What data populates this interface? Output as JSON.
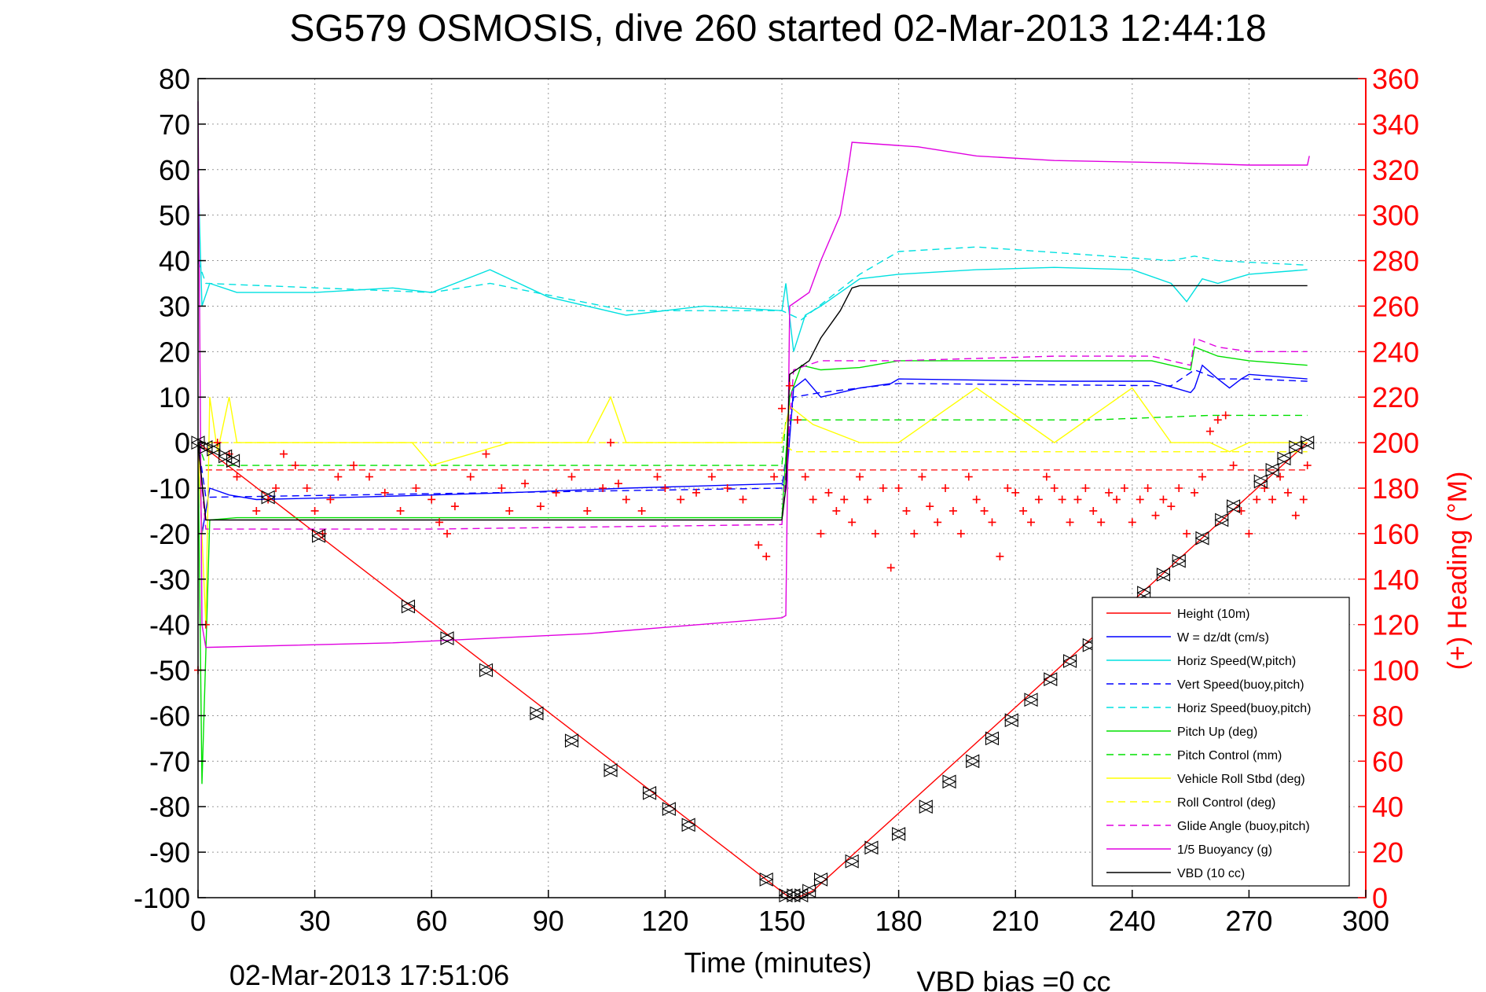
{
  "chart_data": {
    "type": "line",
    "title": "SG579 OSMOSIS, dive 260 started 02-Mar-2013 12:44:18",
    "xlabel": "Time (minutes)",
    "ylabel": "",
    "y2label": "(+) Heading (°M)",
    "footer_left": "02-Mar-2013 17:51:06",
    "footer_right": "VBD bias =0 cc",
    "xlim": [
      0,
      300
    ],
    "ylim": [
      -100,
      80
    ],
    "y2lim": [
      0,
      360
    ],
    "grid": true,
    "legend_position": "bottom-right",
    "x_ticks": [
      "0",
      "30",
      "60",
      "90",
      "120",
      "150",
      "180",
      "210",
      "240",
      "270",
      "300"
    ],
    "y_ticks": [
      "80",
      "70",
      "60",
      "50",
      "40",
      "30",
      "20",
      "10",
      "0",
      "-10",
      "-20",
      "-30",
      "-40",
      "-50",
      "-60",
      "-70",
      "-80",
      "-90",
      "-100"
    ],
    "y2_ticks": [
      "360",
      "340",
      "320",
      "300",
      "280",
      "260",
      "240",
      "220",
      "200",
      "180",
      "160",
      "140",
      "120",
      "100",
      "80",
      "60",
      "40",
      "20",
      "0"
    ],
    "legend": [
      "Height (10m)",
      "W = dz/dt (cm/s)",
      "Horiz Speed(W,pitch)",
      "Vert Speed(buoy,pitch)",
      "Horiz Speed(buoy,pitch)",
      "Pitch Up (deg)",
      "Pitch Control (mm)",
      "Vehicle Roll Stbd (deg)",
      "Roll Control (deg)",
      "Glide Angle (buoy,pitch)",
      "1/5 Buoyancy (g)",
      "VBD (10 cc)"
    ],
    "series": [
      {
        "name": "Height (10m)",
        "color": "#ff0000",
        "dash": "solid",
        "x": [
          0,
          152,
          154,
          158,
          285
        ],
        "y": [
          0,
          -100,
          -100,
          -98.5,
          0
        ]
      },
      {
        "name": "W = dz/dt (cm/s)",
        "color": "#0000ff",
        "dash": "solid",
        "x": [
          0,
          1,
          3,
          8,
          15,
          40,
          80,
          110,
          150,
          151,
          153,
          156,
          160,
          170,
          178,
          180,
          220,
          245,
          255,
          256,
          258,
          262,
          265,
          268,
          270,
          285
        ],
        "y": [
          0,
          -20,
          -10,
          -11.5,
          -12.5,
          -12,
          -11,
          -10,
          -9,
          -10,
          12,
          14,
          10,
          12,
          13,
          14,
          13.5,
          13.5,
          11,
          12,
          17,
          14,
          12,
          14,
          15,
          14
        ]
      },
      {
        "name": "Horiz Speed(W,pitch)",
        "color": "#00e0e0",
        "dash": "solid",
        "x": [
          0,
          1,
          3,
          10,
          30,
          50,
          60,
          75,
          90,
          110,
          130,
          150,
          151,
          153,
          156,
          160,
          165,
          170,
          180,
          200,
          220,
          240,
          250,
          254,
          258,
          262,
          270,
          285
        ],
        "y": [
          60,
          30,
          35,
          33,
          33,
          34,
          33,
          38,
          32,
          28,
          30,
          29,
          35,
          20,
          28,
          30,
          33,
          36,
          37,
          38,
          38.5,
          38,
          35,
          31,
          36,
          35,
          37,
          38
        ]
      },
      {
        "name": "Vert Speed(buoy,pitch)",
        "color": "#0000ff",
        "dash": "dashed",
        "x": [
          0,
          2,
          150,
          153,
          160,
          180,
          250,
          256,
          262,
          270,
          285
        ],
        "y": [
          0,
          -12,
          -10,
          10,
          11,
          13,
          12.5,
          16,
          14,
          14,
          13.5
        ]
      },
      {
        "name": "Horiz Speed(buoy,pitch)",
        "color": "#00e0e0",
        "dash": "dashed",
        "x": [
          0,
          2,
          60,
          75,
          110,
          150,
          155,
          170,
          180,
          200,
          250,
          256,
          262,
          285
        ],
        "y": [
          40,
          35,
          33,
          35,
          29,
          29,
          27,
          37,
          42,
          43,
          40,
          41,
          40,
          39
        ]
      },
      {
        "name": "Pitch Up (deg)",
        "color": "#00e000",
        "dash": "solid",
        "x": [
          0,
          1,
          3,
          10,
          60,
          110,
          150,
          152,
          155,
          160,
          170,
          180,
          220,
          245,
          255,
          256,
          262,
          270,
          285
        ],
        "y": [
          0,
          -75,
          -17,
          -16.5,
          -16.5,
          -16.5,
          -16.5,
          10,
          17,
          16,
          16.5,
          18,
          18,
          18,
          16,
          21,
          19,
          18,
          17
        ]
      },
      {
        "name": "Pitch Control (mm)",
        "color": "#00e000",
        "dash": "dashed",
        "x": [
          0,
          2,
          50,
          100,
          150,
          151,
          155,
          180,
          230,
          260,
          285
        ],
        "y": [
          0,
          -5,
          -5,
          -5,
          -5,
          5,
          5,
          5,
          5,
          6,
          6
        ]
      },
      {
        "name": "Vehicle Roll Stbd (deg)",
        "color": "#ffff00",
        "dash": "solid",
        "x": [
          0,
          2,
          3,
          5,
          8,
          10,
          20,
          40,
          55,
          60,
          80,
          90,
          100,
          106,
          110,
          120,
          130,
          150,
          152,
          158,
          170,
          180,
          200,
          220,
          240,
          250,
          260,
          265,
          270,
          285
        ],
        "y": [
          0,
          -40,
          10,
          -2,
          10,
          0,
          0,
          0,
          0,
          -5,
          0,
          0,
          0,
          10,
          0,
          0,
          0,
          0,
          8,
          4,
          0,
          0,
          12,
          0,
          12,
          0,
          0,
          -2,
          0,
          0
        ]
      },
      {
        "name": "Roll Control (deg)",
        "color": "#ffff00",
        "dash": "dashed",
        "x": [
          0,
          5,
          150,
          153,
          285
        ],
        "y": [
          0,
          0,
          0,
          -2,
          -2
        ]
      },
      {
        "name": "Glide Angle (buoy,pitch)",
        "color": "#e000e0",
        "dash": "dashed",
        "x": [
          0,
          2,
          60,
          150,
          153,
          160,
          180,
          220,
          245,
          255,
          256,
          262,
          270,
          285
        ],
        "y": [
          0,
          -19,
          -19,
          -18,
          16,
          18,
          18,
          19,
          19,
          17,
          23,
          21,
          20,
          20
        ]
      },
      {
        "name": "1/5 Buoyancy (g)",
        "color": "#e000e0",
        "dash": "solid",
        "x": [
          0,
          1,
          2,
          50,
          100,
          150,
          151,
          152,
          157,
          160,
          165,
          167,
          168,
          185,
          200,
          220,
          250,
          270,
          285,
          285.5
        ],
        "y": [
          75,
          -40,
          -45,
          -44,
          -42,
          -38.5,
          -38,
          30,
          33,
          40,
          50,
          60,
          66,
          65,
          63,
          62,
          61.5,
          61,
          61,
          63
        ]
      },
      {
        "name": "VBD (10 cc)",
        "color": "#000000",
        "dash": "solid",
        "x": [
          0,
          2,
          150,
          151,
          152,
          157,
          160,
          165,
          168,
          170,
          285
        ],
        "y": [
          0,
          -17,
          -17,
          -10,
          15,
          18,
          23,
          29,
          34,
          34.5,
          34.5
        ]
      }
    ],
    "heading": {
      "name": "(+) Heading (°M)",
      "color": "#ff0000",
      "marker": "+",
      "reference_line": 188,
      "x": [
        0,
        2,
        5,
        8,
        10,
        15,
        18,
        20,
        22,
        25,
        28,
        30,
        32,
        34,
        36,
        40,
        44,
        48,
        52,
        56,
        60,
        62,
        64,
        66,
        70,
        74,
        78,
        80,
        84,
        88,
        92,
        96,
        100,
        104,
        106,
        108,
        110,
        114,
        118,
        120,
        124,
        128,
        132,
        136,
        140,
        144,
        146,
        148,
        150,
        152,
        154,
        156,
        158,
        160,
        162,
        164,
        166,
        168,
        170,
        172,
        174,
        176,
        178,
        180,
        182,
        184,
        186,
        188,
        190,
        192,
        194,
        196,
        198,
        200,
        202,
        204,
        206,
        208,
        210,
        212,
        214,
        216,
        218,
        220,
        222,
        224,
        226,
        228,
        230,
        232,
        234,
        236,
        238,
        240,
        242,
        244,
        246,
        248,
        250,
        252,
        254,
        256,
        258,
        260,
        262,
        264,
        266,
        268,
        270,
        272,
        274,
        276,
        278,
        280,
        282,
        284,
        285
      ],
      "y": [
        100,
        120,
        200,
        195,
        185,
        170,
        175,
        180,
        195,
        190,
        180,
        170,
        160,
        175,
        185,
        190,
        185,
        178,
        170,
        180,
        175,
        165,
        160,
        172,
        185,
        195,
        180,
        170,
        182,
        172,
        178,
        185,
        170,
        180,
        200,
        182,
        175,
        170,
        185,
        180,
        175,
        178,
        185,
        180,
        175,
        155,
        150,
        185,
        215,
        225,
        210,
        185,
        175,
        160,
        178,
        170,
        175,
        165,
        185,
        175,
        160,
        180,
        145,
        180,
        170,
        160,
        185,
        172,
        165,
        180,
        170,
        160,
        185,
        175,
        170,
        165,
        150,
        180,
        178,
        170,
        165,
        175,
        185,
        180,
        175,
        165,
        175,
        180,
        170,
        165,
        178,
        175,
        180,
        165,
        175,
        180,
        168,
        175,
        172,
        180,
        160,
        178,
        185,
        205,
        210,
        212,
        190,
        170,
        160,
        175,
        180,
        175,
        185,
        178,
        168,
        175,
        190
      ]
    },
    "height_markers": {
      "type": "triangle-pairs",
      "x": [
        0,
        2,
        4,
        7,
        9,
        18,
        31,
        54,
        64,
        74,
        87,
        96,
        106,
        116,
        121,
        126,
        146,
        151,
        153,
        155,
        157,
        160,
        168,
        173,
        180,
        187,
        193,
        199,
        204,
        209,
        214,
        219,
        224,
        229,
        237,
        243,
        248,
        252,
        258,
        263,
        266,
        273,
        276,
        279,
        282,
        285
      ],
      "y": [
        0,
        -1,
        -1.5,
        -3,
        -4,
        -12,
        -20.5,
        -36,
        -43,
        -50,
        -59.5,
        -65.5,
        -72,
        -77,
        -80.5,
        -84,
        -96,
        -99.5,
        -99.5,
        -99.5,
        -98.5,
        -96,
        -92,
        -89,
        -86,
        -80,
        -74.5,
        -70,
        -65,
        -61,
        -56.5,
        -52,
        -48,
        -44.5,
        -38,
        -33,
        -29,
        -26,
        -21,
        -17,
        -14,
        -8.5,
        -6,
        -3.5,
        -1,
        0
      ]
    }
  }
}
